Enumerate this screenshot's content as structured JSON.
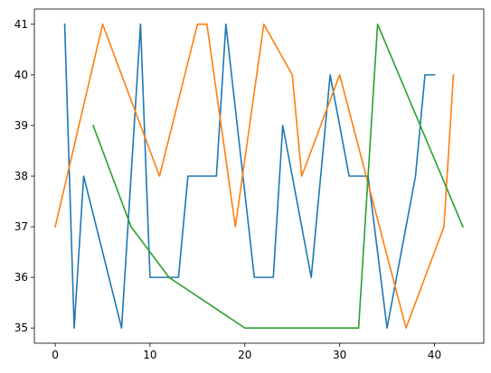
{
  "chart_data": {
    "type": "line",
    "title": "",
    "xlabel": "",
    "ylabel": "",
    "xlim": [
      -2.2,
      45.2
    ],
    "ylim": [
      34.7,
      41.3
    ],
    "xticks": [
      0,
      10,
      20,
      30,
      40
    ],
    "yticks": [
      35,
      36,
      37,
      38,
      39,
      40,
      41
    ],
    "grid": false,
    "legend": "none",
    "series": [
      {
        "color": "#1f77b4",
        "points": [
          [
            1,
            41
          ],
          [
            2,
            35
          ],
          [
            3,
            38
          ],
          [
            7,
            35
          ],
          [
            9,
            41
          ],
          [
            10,
            36
          ],
          [
            13,
            36
          ],
          [
            14,
            38
          ],
          [
            17,
            38
          ],
          [
            18,
            41
          ],
          [
            21,
            36
          ],
          [
            23,
            36
          ],
          [
            24,
            39
          ],
          [
            27,
            36
          ],
          [
            29,
            40
          ],
          [
            31,
            38
          ],
          [
            33,
            38
          ],
          [
            35,
            35
          ],
          [
            38,
            38
          ],
          [
            39,
            40
          ],
          [
            40,
            40
          ]
        ]
      },
      {
        "color": "#ff7f0e",
        "points": [
          [
            0,
            37
          ],
          [
            5,
            41
          ],
          [
            11,
            38
          ],
          [
            15,
            41
          ],
          [
            16,
            41
          ],
          [
            19,
            37
          ],
          [
            22,
            41
          ],
          [
            25,
            40
          ],
          [
            26,
            38
          ],
          [
            30,
            40
          ],
          [
            37,
            35
          ],
          [
            41,
            37
          ],
          [
            42,
            40
          ]
        ]
      },
      {
        "color": "#2ca02c",
        "points": [
          [
            4,
            39
          ],
          [
            8,
            37
          ],
          [
            12,
            36
          ],
          [
            20,
            35
          ],
          [
            32,
            35
          ],
          [
            34,
            41
          ],
          [
            43,
            37
          ]
        ]
      }
    ]
  }
}
